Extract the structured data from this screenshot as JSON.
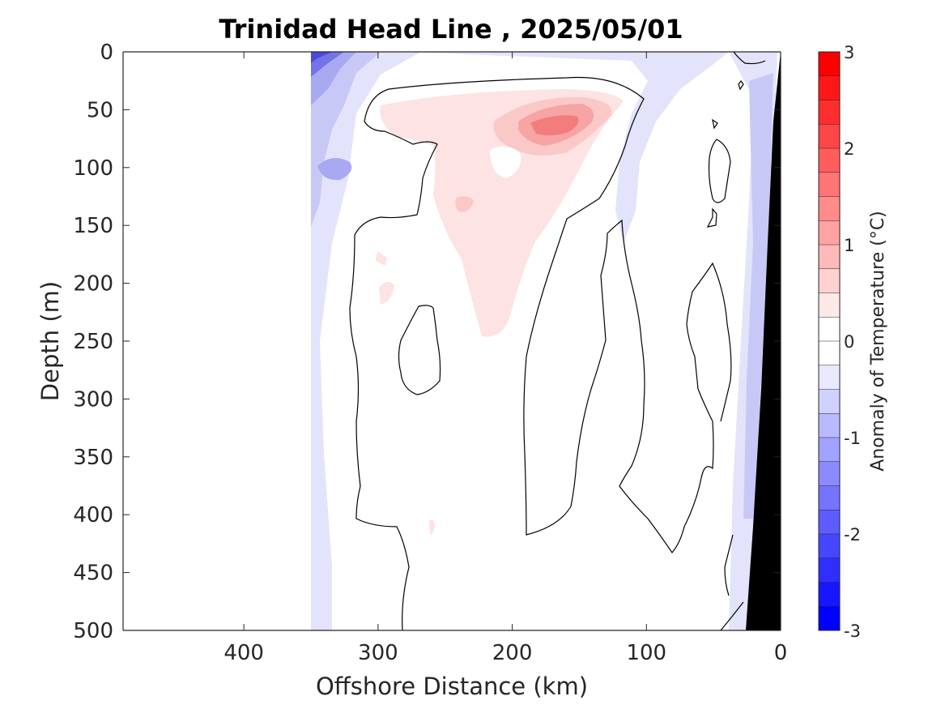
{
  "chart_data": {
    "type": "heatmap",
    "title": "Trinidad Head Line , 2025/05/01",
    "xlabel": "Offshore Distance (km)",
    "ylabel": "Depth (m)",
    "xlim": [
      490,
      0
    ],
    "ylim": [
      0,
      500
    ],
    "x_direction": "reversed",
    "y_direction": "reversed (depth increases downward)",
    "x_ticks": [
      400,
      300,
      200,
      100,
      0
    ],
    "x_tick_labels": [
      "400",
      "300",
      "200",
      "100",
      "0"
    ],
    "y_ticks": [
      0,
      50,
      100,
      150,
      200,
      250,
      300,
      350,
      400,
      450,
      500
    ],
    "y_tick_labels": [
      "0",
      "50",
      "100",
      "150",
      "200",
      "250",
      "300",
      "350",
      "400",
      "450",
      "500"
    ],
    "colorbar": {
      "label": "Anomaly of Temperature (°C)",
      "range": [
        -3,
        3
      ],
      "step": 0.25,
      "ticks": [
        3,
        2,
        1,
        0,
        -1,
        -2,
        -3
      ],
      "tick_labels": [
        "3",
        "2",
        "1",
        "0",
        "-1",
        "-2",
        "-3"
      ],
      "color_max": "#ff0000",
      "color_zero": "#ffffff",
      "color_min": "#0000ff"
    },
    "data_extent_offshore_km": [
      352,
      0
    ],
    "contour_levels_drawn": [
      0
    ],
    "regions": [
      {
        "label": "surface cold anomaly near 350 km",
        "x_range": [
          352,
          310
        ],
        "depth_range": [
          0,
          40
        ],
        "anomaly": -1.5
      },
      {
        "label": "cold anomaly at ~100 m offshore",
        "x_range": [
          352,
          320
        ],
        "depth_range": [
          80,
          120
        ],
        "anomaly": -0.75
      },
      {
        "label": "subsurface warm core",
        "x_range": [
          170,
          135
        ],
        "depth_range": [
          55,
          80
        ],
        "anomaly": 1.25
      },
      {
        "label": "broad warm anomaly",
        "x_range": [
          290,
          110
        ],
        "depth_range": [
          40,
          250
        ],
        "anomaly": 0.4
      },
      {
        "label": "cold band near coast",
        "x_range": [
          60,
          20
        ],
        "depth_range": [
          0,
          500
        ],
        "anomaly": -0.3
      }
    ],
    "land_mask": {
      "color": "#000000",
      "shelf_edge_km_at_surface": 0,
      "shelf_edge_km_at_500m": 29
    }
  }
}
